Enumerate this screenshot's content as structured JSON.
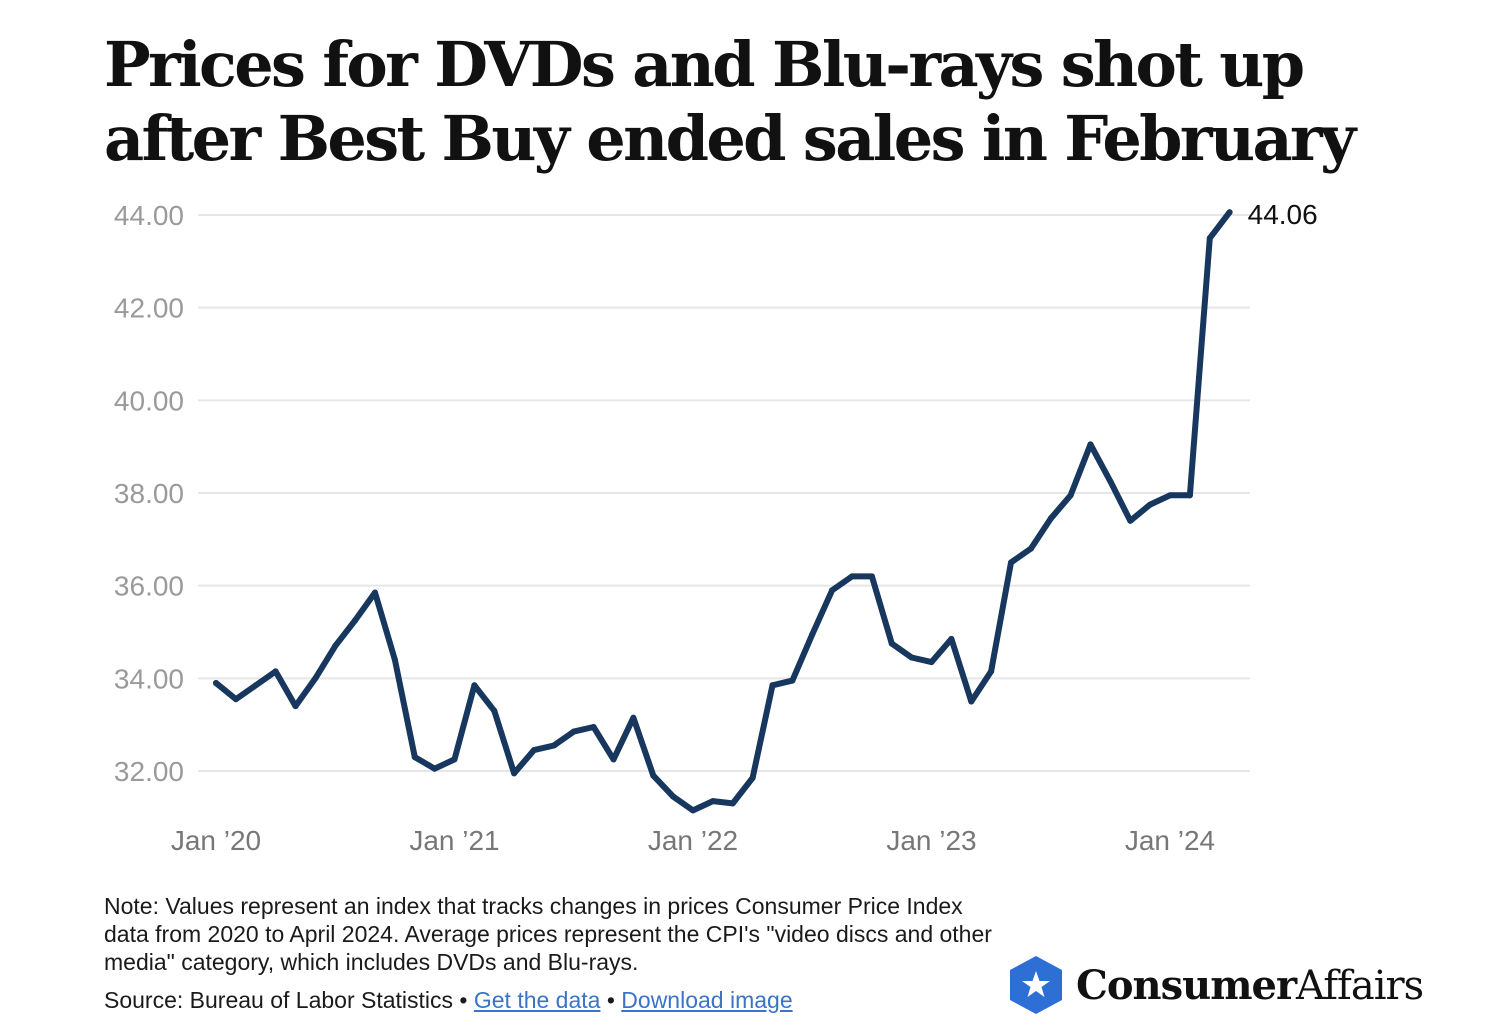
{
  "title": "Prices for DVDs and Blu-rays shot up after Best Buy ended sales in February",
  "chart_data": {
    "type": "line",
    "title": "Prices for DVDs and Blu-rays shot up after Best Buy ended sales in February",
    "xlabel": "",
    "ylabel": "",
    "x_ticks": [
      "Jan ’20",
      "Jan ’21",
      "Jan ’22",
      "Jan ’23",
      "Jan ’24"
    ],
    "y_ticks": [
      "44.00",
      "42.00",
      "40.00",
      "38.00",
      "36.00",
      "34.00",
      "32.00"
    ],
    "ylim": [
      31,
      44
    ],
    "grid": true,
    "line_color": "#17375e",
    "end_label": "44.06",
    "x": [
      "2020-01",
      "2020-02",
      "2020-03",
      "2020-04",
      "2020-05",
      "2020-06",
      "2020-07",
      "2020-08",
      "2020-09",
      "2020-10",
      "2020-11",
      "2020-12",
      "2021-01",
      "2021-02",
      "2021-03",
      "2021-04",
      "2021-05",
      "2021-06",
      "2021-07",
      "2021-08",
      "2021-09",
      "2021-10",
      "2021-11",
      "2021-12",
      "2022-01",
      "2022-02",
      "2022-03",
      "2022-04",
      "2022-05",
      "2022-06",
      "2022-07",
      "2022-08",
      "2022-09",
      "2022-10",
      "2022-11",
      "2022-12",
      "2023-01",
      "2023-02",
      "2023-03",
      "2023-04",
      "2023-05",
      "2023-06",
      "2023-07",
      "2023-08",
      "2023-09",
      "2023-10",
      "2023-11",
      "2023-12",
      "2024-01",
      "2024-02",
      "2024-03",
      "2024-04"
    ],
    "values": [
      33.9,
      33.55,
      33.85,
      34.15,
      33.4,
      34.0,
      34.7,
      35.25,
      35.85,
      34.4,
      32.3,
      32.05,
      32.25,
      33.85,
      33.3,
      31.95,
      32.45,
      32.55,
      32.85,
      32.95,
      32.25,
      33.15,
      31.9,
      31.45,
      31.15,
      31.35,
      31.3,
      31.85,
      33.85,
      33.95,
      34.95,
      35.9,
      36.2,
      36.2,
      34.75,
      34.45,
      34.35,
      34.85,
      33.5,
      34.15,
      36.5,
      36.8,
      37.45,
      37.95,
      39.05,
      38.25,
      37.4,
      37.75,
      37.95,
      37.95,
      43.5,
      44.06
    ]
  },
  "note": "Note: Values represent an index that tracks changes in prices Consumer Price Index data from 2020 to April 2024. Average prices represent the CPI's \"video discs and other media\" category, which includes DVDs and Blu-rays.",
  "source": {
    "prefix": "Source: Bureau of Labor Statistics • ",
    "get_data": "Get the data",
    "separator": " • ",
    "download": "Download image"
  },
  "brand": {
    "bold": "Consumer",
    "regular": "Affairs",
    "logo_icon": "star-shield-icon",
    "logo_color": "#2e6fd6"
  }
}
